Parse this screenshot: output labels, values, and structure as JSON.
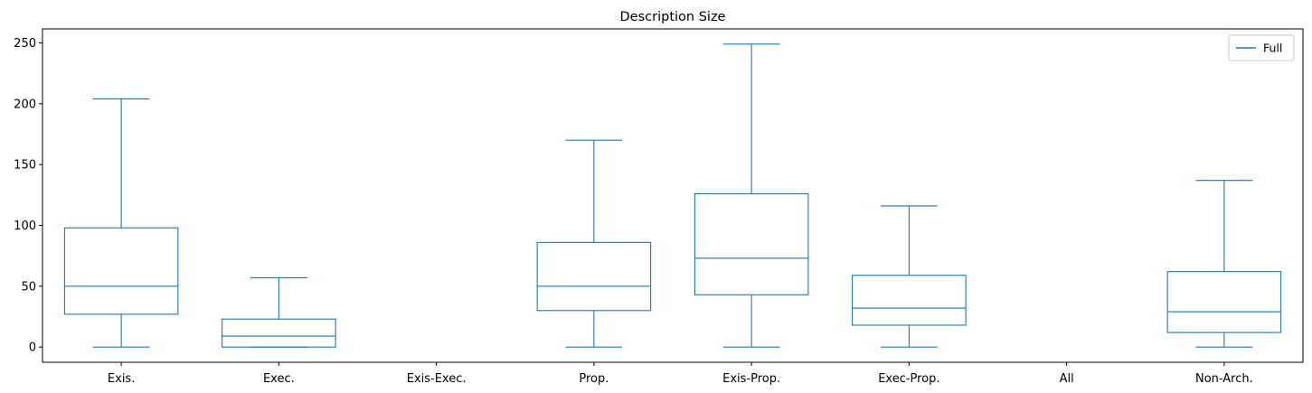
{
  "chart_data": {
    "type": "box",
    "title": "Description Size",
    "xlabel": "",
    "ylabel": "",
    "ylim": [
      -12.5,
      261.5
    ],
    "yticks": [
      0,
      50,
      100,
      150,
      200,
      250
    ],
    "categories": [
      "Exis.",
      "Exec.",
      "Exis-Exec.",
      "Prop.",
      "Exis-Prop.",
      "Exec-Prop.",
      "All",
      "Non-Arch."
    ],
    "series": [
      {
        "name": "Full",
        "boxes": [
          {
            "whisker_low": 0,
            "q1": 27,
            "median": 50,
            "q3": 98,
            "whisker_high": 204
          },
          {
            "whisker_low": 0,
            "q1": 0,
            "median": 9,
            "q3": 23,
            "whisker_high": 57
          },
          null,
          {
            "whisker_low": 0,
            "q1": 30,
            "median": 50,
            "q3": 86,
            "whisker_high": 170
          },
          {
            "whisker_low": 0,
            "q1": 43,
            "median": 73,
            "q3": 126,
            "whisker_high": 249
          },
          {
            "whisker_low": 0,
            "q1": 18,
            "median": 32,
            "q3": 59,
            "whisker_high": 116
          },
          null,
          {
            "whisker_low": 0,
            "q1": 12,
            "median": 29,
            "q3": 62,
            "whisker_high": 137
          }
        ]
      }
    ],
    "grid": false,
    "legend_position": "top-right",
    "colors": {
      "series": "#1f77b4",
      "axis": "#000000"
    }
  }
}
